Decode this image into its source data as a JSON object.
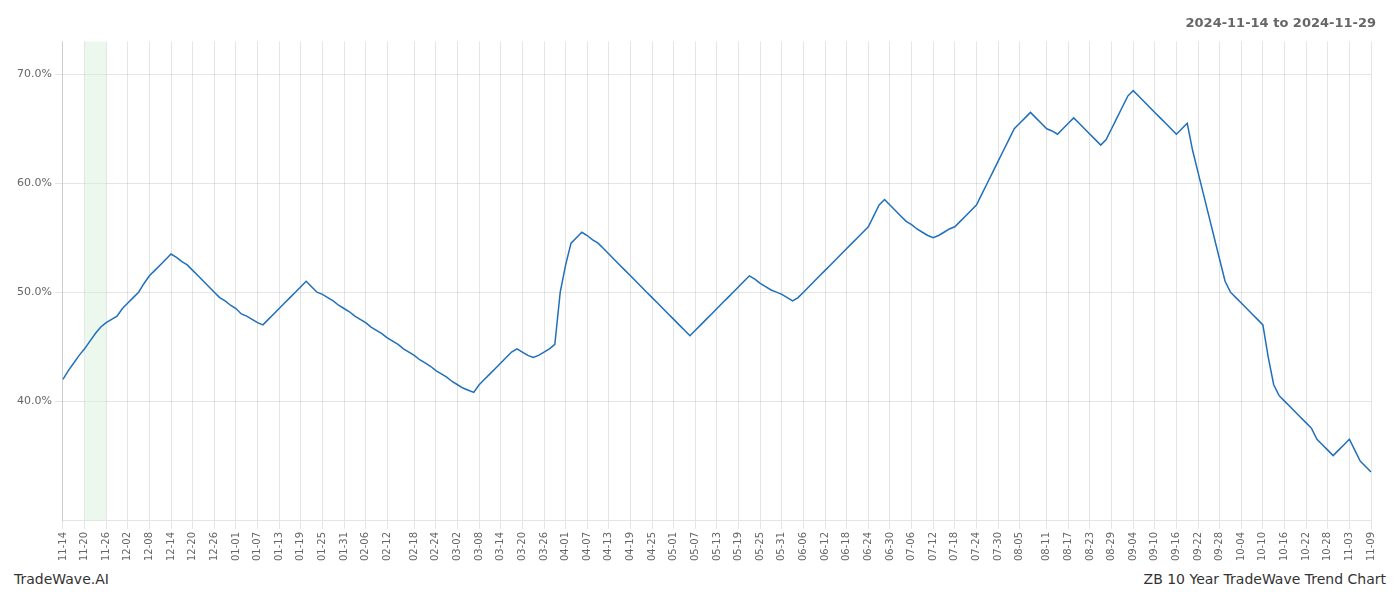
{
  "chart_data": {
    "type": "line",
    "title": "2024-11-14 to 2024-11-29",
    "annotations": [
      "TradeWave.AI",
      "ZB 10 Year TradeWave Trend Chart"
    ],
    "categories": [
      "11-14",
      null,
      null,
      null,
      "11-20",
      null,
      null,
      null,
      "11-26",
      null,
      null,
      null,
      "12-02",
      null,
      null,
      null,
      "12-08",
      null,
      null,
      null,
      "12-14",
      null,
      null,
      null,
      "12-20",
      null,
      null,
      null,
      "12-26",
      null,
      null,
      null,
      "01-01",
      null,
      null,
      null,
      "01-07",
      null,
      null,
      null,
      "01-13",
      null,
      null,
      null,
      "01-19",
      null,
      null,
      null,
      "01-25",
      null,
      null,
      null,
      "01-31",
      null,
      null,
      null,
      "02-06",
      null,
      null,
      null,
      "02-12",
      null,
      null,
      null,
      null,
      "02-18",
      null,
      null,
      null,
      "02-24",
      null,
      null,
      null,
      "03-02",
      null,
      null,
      null,
      "03-08",
      null,
      null,
      null,
      "03-14",
      null,
      null,
      null,
      "03-20",
      null,
      null,
      null,
      "03-26",
      null,
      null,
      null,
      "04-01",
      null,
      null,
      null,
      "04-07",
      null,
      null,
      null,
      "04-13",
      null,
      null,
      null,
      "04-19",
      null,
      null,
      null,
      "04-25",
      null,
      null,
      null,
      "05-01",
      null,
      null,
      null,
      "05-07",
      null,
      null,
      null,
      "05-13",
      null,
      null,
      null,
      "05-19",
      null,
      null,
      null,
      "05-25",
      null,
      null,
      null,
      "05-31",
      null,
      null,
      null,
      "06-06",
      null,
      null,
      null,
      "06-12",
      null,
      null,
      null,
      "06-18",
      null,
      null,
      null,
      "06-24",
      null,
      null,
      null,
      "06-30",
      null,
      null,
      null,
      "07-06",
      null,
      null,
      null,
      "07-12",
      null,
      null,
      null,
      "07-18",
      null,
      null,
      null,
      "07-24",
      null,
      null,
      null,
      "07-30",
      null,
      null,
      null,
      "08-05",
      null,
      null,
      null,
      null,
      "08-11",
      null,
      null,
      null,
      "08-17",
      null,
      null,
      null,
      "08-23",
      null,
      null,
      null,
      "08-29",
      null,
      null,
      null,
      "09-04",
      null,
      null,
      null,
      "09-10",
      null,
      null,
      null,
      "09-16",
      null,
      null,
      null,
      "09-22",
      null,
      null,
      null,
      "09-28",
      null,
      null,
      null,
      "10-04",
      null,
      null,
      null,
      "10-10",
      null,
      null,
      null,
      "10-16",
      null,
      null,
      null,
      "10-22",
      null,
      null,
      null,
      "10-28",
      null,
      null,
      null,
      "11-03",
      null,
      null,
      null,
      "11-09"
    ],
    "values": [
      42.0,
      42.8,
      43.5,
      44.2,
      44.8,
      45.5,
      46.2,
      46.8,
      47.2,
      47.5,
      47.8,
      48.5,
      49.0,
      49.5,
      50.0,
      50.8,
      51.5,
      52.0,
      52.5,
      53.0,
      53.5,
      53.2,
      52.8,
      52.5,
      52.0,
      51.5,
      51.0,
      50.5,
      50.0,
      49.5,
      49.2,
      48.8,
      48.5,
      48.0,
      47.8,
      47.5,
      47.2,
      47.0,
      47.5,
      48.0,
      48.5,
      49.0,
      49.5,
      50.0,
      50.5,
      51.0,
      50.5,
      50.0,
      49.8,
      49.5,
      49.2,
      48.8,
      48.5,
      48.2,
      47.8,
      47.5,
      47.2,
      46.8,
      46.5,
      46.2,
      45.8,
      45.5,
      45.2,
      44.8,
      44.5,
      44.2,
      43.8,
      43.5,
      43.2,
      42.8,
      42.5,
      42.2,
      41.8,
      41.5,
      41.2,
      41.0,
      40.8,
      41.5,
      42.0,
      42.5,
      43.0,
      43.5,
      44.0,
      44.5,
      44.8,
      44.5,
      44.2,
      44.0,
      44.2,
      44.5,
      44.8,
      45.2,
      50.0,
      52.5,
      54.5,
      55.0,
      55.5,
      55.2,
      54.8,
      54.5,
      54.0,
      53.5,
      53.0,
      52.5,
      52.0,
      51.5,
      51.0,
      50.5,
      50.0,
      49.5,
      49.0,
      48.5,
      48.0,
      47.5,
      47.0,
      46.5,
      46.0,
      46.5,
      47.0,
      47.5,
      48.0,
      48.5,
      49.0,
      49.5,
      50.0,
      50.5,
      51.0,
      51.5,
      51.2,
      50.8,
      50.5,
      50.2,
      50.0,
      49.8,
      49.5,
      49.2,
      49.5,
      50.0,
      50.5,
      51.0,
      51.5,
      52.0,
      52.5,
      53.0,
      53.5,
      54.0,
      54.5,
      55.0,
      55.5,
      56.0,
      57.0,
      58.0,
      58.5,
      58.0,
      57.5,
      57.0,
      56.5,
      56.2,
      55.8,
      55.5,
      55.2,
      55.0,
      55.2,
      55.5,
      55.8,
      56.0,
      56.5,
      57.0,
      57.5,
      58.0,
      59.0,
      60.0,
      61.0,
      62.0,
      63.0,
      64.0,
      65.0,
      65.5,
      66.0,
      66.5,
      66.0,
      65.5,
      65.0,
      64.8,
      64.5,
      65.0,
      65.5,
      66.0,
      65.5,
      65.0,
      64.5,
      64.0,
      63.5,
      64.0,
      65.0,
      66.0,
      67.0,
      68.0,
      68.5,
      68.0,
      67.5,
      67.0,
      66.5,
      66.0,
      65.5,
      65.0,
      64.5,
      65.0,
      65.5,
      63.0,
      61.0,
      59.0,
      57.0,
      55.0,
      53.0,
      51.0,
      50.0,
      49.5,
      49.0,
      48.5,
      48.0,
      47.5,
      47.0,
      44.0,
      41.5,
      40.5,
      40.0,
      39.5,
      39.0,
      38.5,
      38.0,
      37.5,
      36.5,
      36.0,
      35.5,
      35.0,
      35.5,
      36.0,
      36.5,
      35.5,
      34.5,
      34.0,
      33.5
    ],
    "color": "#1f6fba",
    "span": {
      "start": "11-20",
      "end": "11-26",
      "color": "#d4edda"
    },
    "ylim": [
      29.0,
      73.0
    ],
    "yticks": [
      {
        "value": 40.0,
        "label": "40.0%"
      },
      {
        "value": 50.0,
        "label": "50.0%"
      },
      {
        "value": 60.0,
        "label": "60.0%"
      },
      {
        "value": 70.0,
        "label": "70.0%"
      }
    ],
    "grid": true
  }
}
